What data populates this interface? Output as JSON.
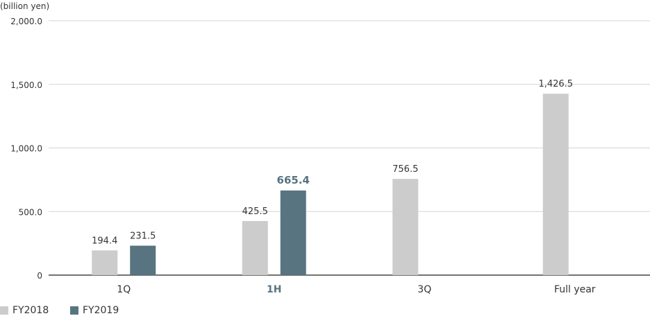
{
  "unit_label": "(billion yen)",
  "colors": {
    "fy2018": "#cccccc",
    "fy2019": "#587480",
    "grid": "#d4d4d4",
    "axis": "#444444",
    "text": "#333333"
  },
  "chart_data": {
    "type": "bar",
    "categories": [
      "1Q",
      "1H",
      "3Q",
      "Full year"
    ],
    "highlight_category": "1H",
    "ylim": [
      0,
      2000
    ],
    "yticks": [
      0,
      500,
      1000,
      1500,
      2000
    ],
    "ytick_labels": [
      "0",
      "500.0",
      "1,000.0",
      "1,500.0",
      "2,000.0"
    ],
    "grid": true,
    "legend_position": "bottom-left",
    "series": [
      {
        "name": "FY2018",
        "values": [
          194.4,
          425.5,
          756.5,
          1426.5
        ],
        "labels": [
          "194.4",
          "425.5",
          "756.5",
          "1,426.5"
        ]
      },
      {
        "name": "FY2019",
        "values": [
          231.5,
          665.4,
          null,
          null
        ],
        "labels": [
          "231.5",
          "665.4",
          null,
          null
        ]
      }
    ]
  }
}
